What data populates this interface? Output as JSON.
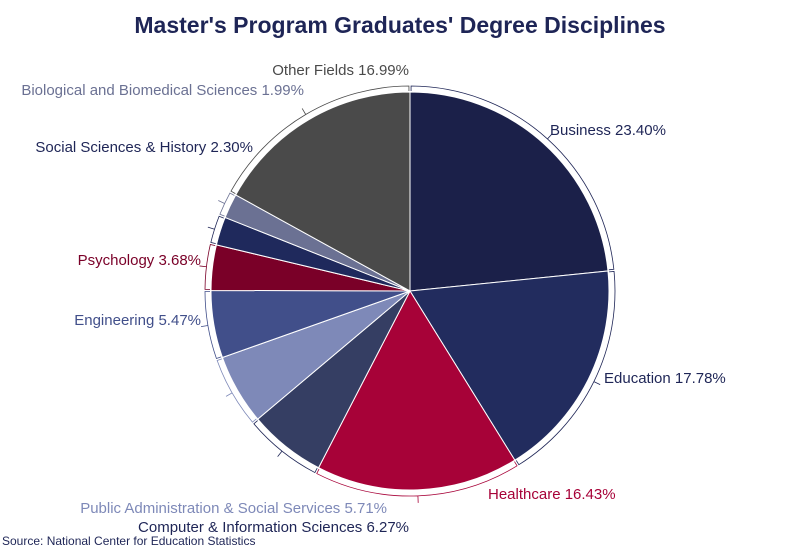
{
  "chart_data": {
    "type": "pie",
    "title": "Master's Program Graduates' Degree Disciplines",
    "slices": [
      {
        "name": "Business",
        "value": 23.4,
        "label": "Business 23.40%",
        "color": "#1b2049",
        "label_color": "#1e2556"
      },
      {
        "name": "Education",
        "value": 17.78,
        "label": "Education 17.78%",
        "color": "#222c5e",
        "label_color": "#1e2556"
      },
      {
        "name": "Healthcare",
        "value": 16.43,
        "label": "Healthcare 16.43%",
        "color": "#a70238",
        "label_color": "#a70238"
      },
      {
        "name": "Computer & Information Sciences",
        "value": 6.27,
        "label": "Computer & Information Sciences 6.27%",
        "color": "#353e63",
        "label_color": "#1e2556"
      },
      {
        "name": "Public Administration & Social Services",
        "value": 5.71,
        "label": "Public Administration & Social Services 5.71%",
        "color": "#7e89b8",
        "label_color": "#7e89b8"
      },
      {
        "name": "Engineering",
        "value": 5.47,
        "label": "Engineering 5.47%",
        "color": "#414f8a",
        "label_color": "#414f8a"
      },
      {
        "name": "Psychology",
        "value": 3.68,
        "label": "Psychology 3.68%",
        "color": "#7a0028",
        "label_color": "#7a0028"
      },
      {
        "name": "Social Sciences & History",
        "value": 2.3,
        "label": "Social Sciences & History 2.30%",
        "color": "#1f295c",
        "label_color": "#1e2556"
      },
      {
        "name": "Biological and Biomedical Sciences",
        "value": 1.99,
        "label": "Biological and Biomedical Sciences 1.99%",
        "color": "#6b7193",
        "label_color": "#6b7193"
      },
      {
        "name": "Other Fields",
        "value": 16.99,
        "label": "Other Fields 16.99%",
        "color": "#4a4a4a",
        "label_color": "#4a4a4a"
      }
    ],
    "source": "Source: National Center for Education Statistics"
  }
}
